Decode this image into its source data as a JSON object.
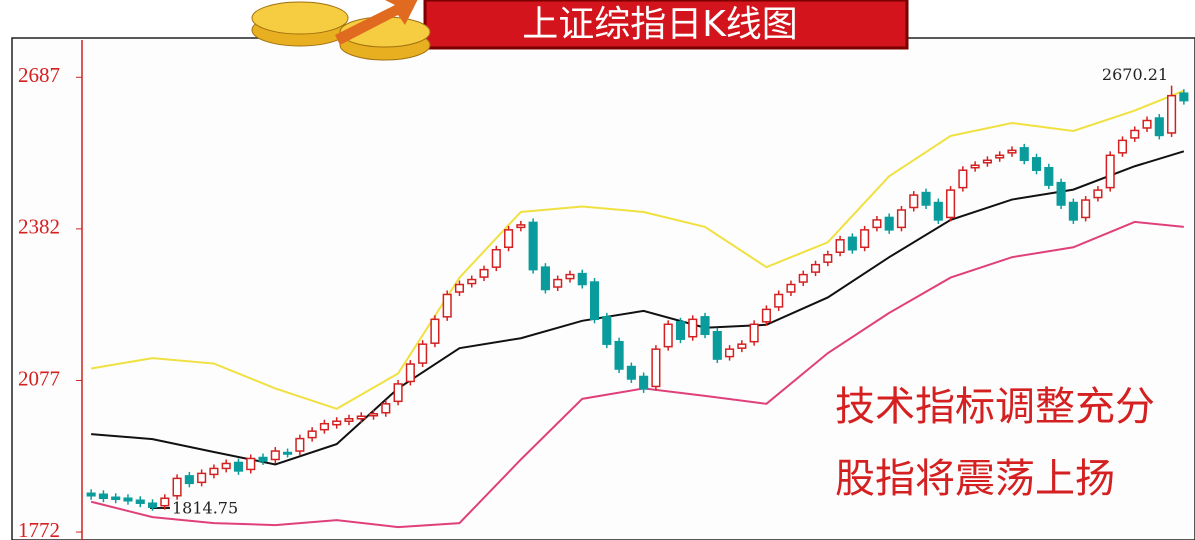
{
  "chart_data": {
    "type": "candlestick",
    "title": "上证综指日K线图",
    "annotations": [
      "2670.21",
      "1814.75",
      "技术指标调整充分",
      "股指将震荡上扬"
    ],
    "up_color": "#d42020",
    "down_color": "#0a9c9c",
    "xlim": [
      -0.5,
      89.5
    ],
    "ylim": [
      1756,
      2762
    ],
    "yticks": [
      1772,
      2077,
      2382,
      2687
    ],
    "open": [
      1850,
      1848,
      1842,
      1840,
      1836,
      1830,
      1825,
      1845,
      1885,
      1872,
      1888,
      1900,
      1912,
      1898,
      1922,
      1918,
      1932,
      1935,
      1962,
      1978,
      1988,
      1995,
      2000,
      2006,
      2012,
      2035,
      2075,
      2112,
      2152,
      2205,
      2255,
      2272,
      2285,
      2305,
      2345,
      2385,
      2395,
      2305,
      2265,
      2282,
      2292,
      2275,
      2205,
      2155,
      2105,
      2085,
      2065,
      2145,
      2195,
      2165,
      2205,
      2175,
      2125,
      2142,
      2155,
      2195,
      2225,
      2255,
      2275,
      2295,
      2315,
      2335,
      2365,
      2345,
      2385,
      2405,
      2385,
      2425,
      2455,
      2435,
      2405,
      2465,
      2505,
      2515,
      2525,
      2535,
      2545,
      2525,
      2505,
      2475,
      2435,
      2405,
      2445,
      2465,
      2535,
      2565,
      2585,
      2605,
      2575,
      2655
    ],
    "high": [
      1858,
      1856,
      1850,
      1848,
      1844,
      1838,
      1848,
      1888,
      1893,
      1898,
      1908,
      1918,
      1920,
      1928,
      1930,
      1943,
      1940,
      1968,
      1983,
      1998,
      2003,
      2008,
      2013,
      2018,
      2038,
      2078,
      2118,
      2158,
      2208,
      2258,
      2278,
      2288,
      2308,
      2348,
      2388,
      2398,
      2403,
      2313,
      2288,
      2298,
      2300,
      2283,
      2213,
      2163,
      2113,
      2093,
      2148,
      2198,
      2203,
      2208,
      2213,
      2183,
      2148,
      2158,
      2198,
      2228,
      2258,
      2278,
      2298,
      2318,
      2338,
      2368,
      2373,
      2388,
      2408,
      2413,
      2428,
      2458,
      2463,
      2443,
      2468,
      2508,
      2518,
      2528,
      2538,
      2548,
      2553,
      2533,
      2513,
      2483,
      2443,
      2448,
      2468,
      2538,
      2568,
      2588,
      2608,
      2613,
      2670.21,
      2663
    ],
    "low": [
      1837,
      1832,
      1830,
      1827,
      1822,
      1814.75,
      1817,
      1837,
      1862,
      1864,
      1880,
      1892,
      1887,
      1890,
      1907,
      1910,
      1922,
      1927,
      1954,
      1970,
      1980,
      1987,
      1992,
      1998,
      2004,
      2027,
      2067,
      2104,
      2144,
      2197,
      2247,
      2264,
      2277,
      2297,
      2337,
      2377,
      2292,
      2252,
      2257,
      2274,
      2262,
      2192,
      2142,
      2092,
      2072,
      2052,
      2057,
      2137,
      2152,
      2157,
      2162,
      2112,
      2117,
      2134,
      2147,
      2187,
      2217,
      2247,
      2267,
      2287,
      2307,
      2327,
      2332,
      2337,
      2377,
      2372,
      2377,
      2417,
      2422,
      2392,
      2397,
      2457,
      2497,
      2507,
      2517,
      2527,
      2512,
      2492,
      2462,
      2422,
      2392,
      2397,
      2437,
      2457,
      2527,
      2557,
      2577,
      2562,
      2567,
      2632
    ],
    "close": [
      1845,
      1840,
      1838,
      1835,
      1830,
      1822,
      1840,
      1880,
      1870,
      1890,
      1900,
      1910,
      1895,
      1920,
      1915,
      1935,
      1930,
      1960,
      1975,
      1990,
      1995,
      2000,
      2005,
      2010,
      2030,
      2070,
      2110,
      2150,
      2200,
      2250,
      2270,
      2280,
      2300,
      2340,
      2380,
      2390,
      2300,
      2260,
      2280,
      2290,
      2270,
      2200,
      2150,
      2100,
      2080,
      2060,
      2140,
      2190,
      2160,
      2200,
      2170,
      2120,
      2140,
      2150,
      2190,
      2220,
      2250,
      2270,
      2290,
      2310,
      2330,
      2360,
      2340,
      2380,
      2400,
      2380,
      2420,
      2450,
      2430,
      2400,
      2460,
      2500,
      2510,
      2520,
      2530,
      2540,
      2520,
      2500,
      2470,
      2430,
      2400,
      2440,
      2460,
      2530,
      2560,
      2580,
      2600,
      2570,
      2650,
      2640
    ],
    "series": [
      {
        "color": "#111111",
        "x": [
          0,
          5,
          10,
          15,
          20,
          25,
          30,
          35,
          40,
          45,
          50,
          55,
          60,
          65,
          70,
          75,
          80,
          85,
          89
        ],
        "values": [
          1969,
          1959,
          1933,
          1908,
          1949,
          2061,
          2142,
          2162,
          2197,
          2217,
          2183,
          2189,
          2244,
          2325,
          2400,
          2441,
          2461,
          2508,
          2538
        ]
      },
      {
        "color": "#f0e040",
        "x": [
          0,
          5,
          10,
          15,
          20,
          25,
          30,
          35,
          40,
          45,
          50,
          55,
          60,
          65,
          70,
          75,
          80,
          85,
          89
        ],
        "values": [
          2101,
          2122,
          2111,
          2061,
          2020,
          2091,
          2284,
          2416,
          2427,
          2416,
          2386,
          2305,
          2355,
          2488,
          2569,
          2595,
          2579,
          2620,
          2660
        ]
      },
      {
        "color": "#e0407a",
        "x": [
          0,
          5,
          10,
          15,
          20,
          25,
          30,
          35,
          40,
          45,
          50,
          55,
          60,
          65,
          70,
          75,
          80,
          85,
          89
        ],
        "values": [
          1833,
          1802,
          1790,
          1786,
          1796,
          1782,
          1790,
          1918,
          2040,
          2061,
          2046,
          2030,
          2132,
          2213,
          2284,
          2325,
          2345,
          2396,
          2386
        ]
      }
    ]
  }
}
